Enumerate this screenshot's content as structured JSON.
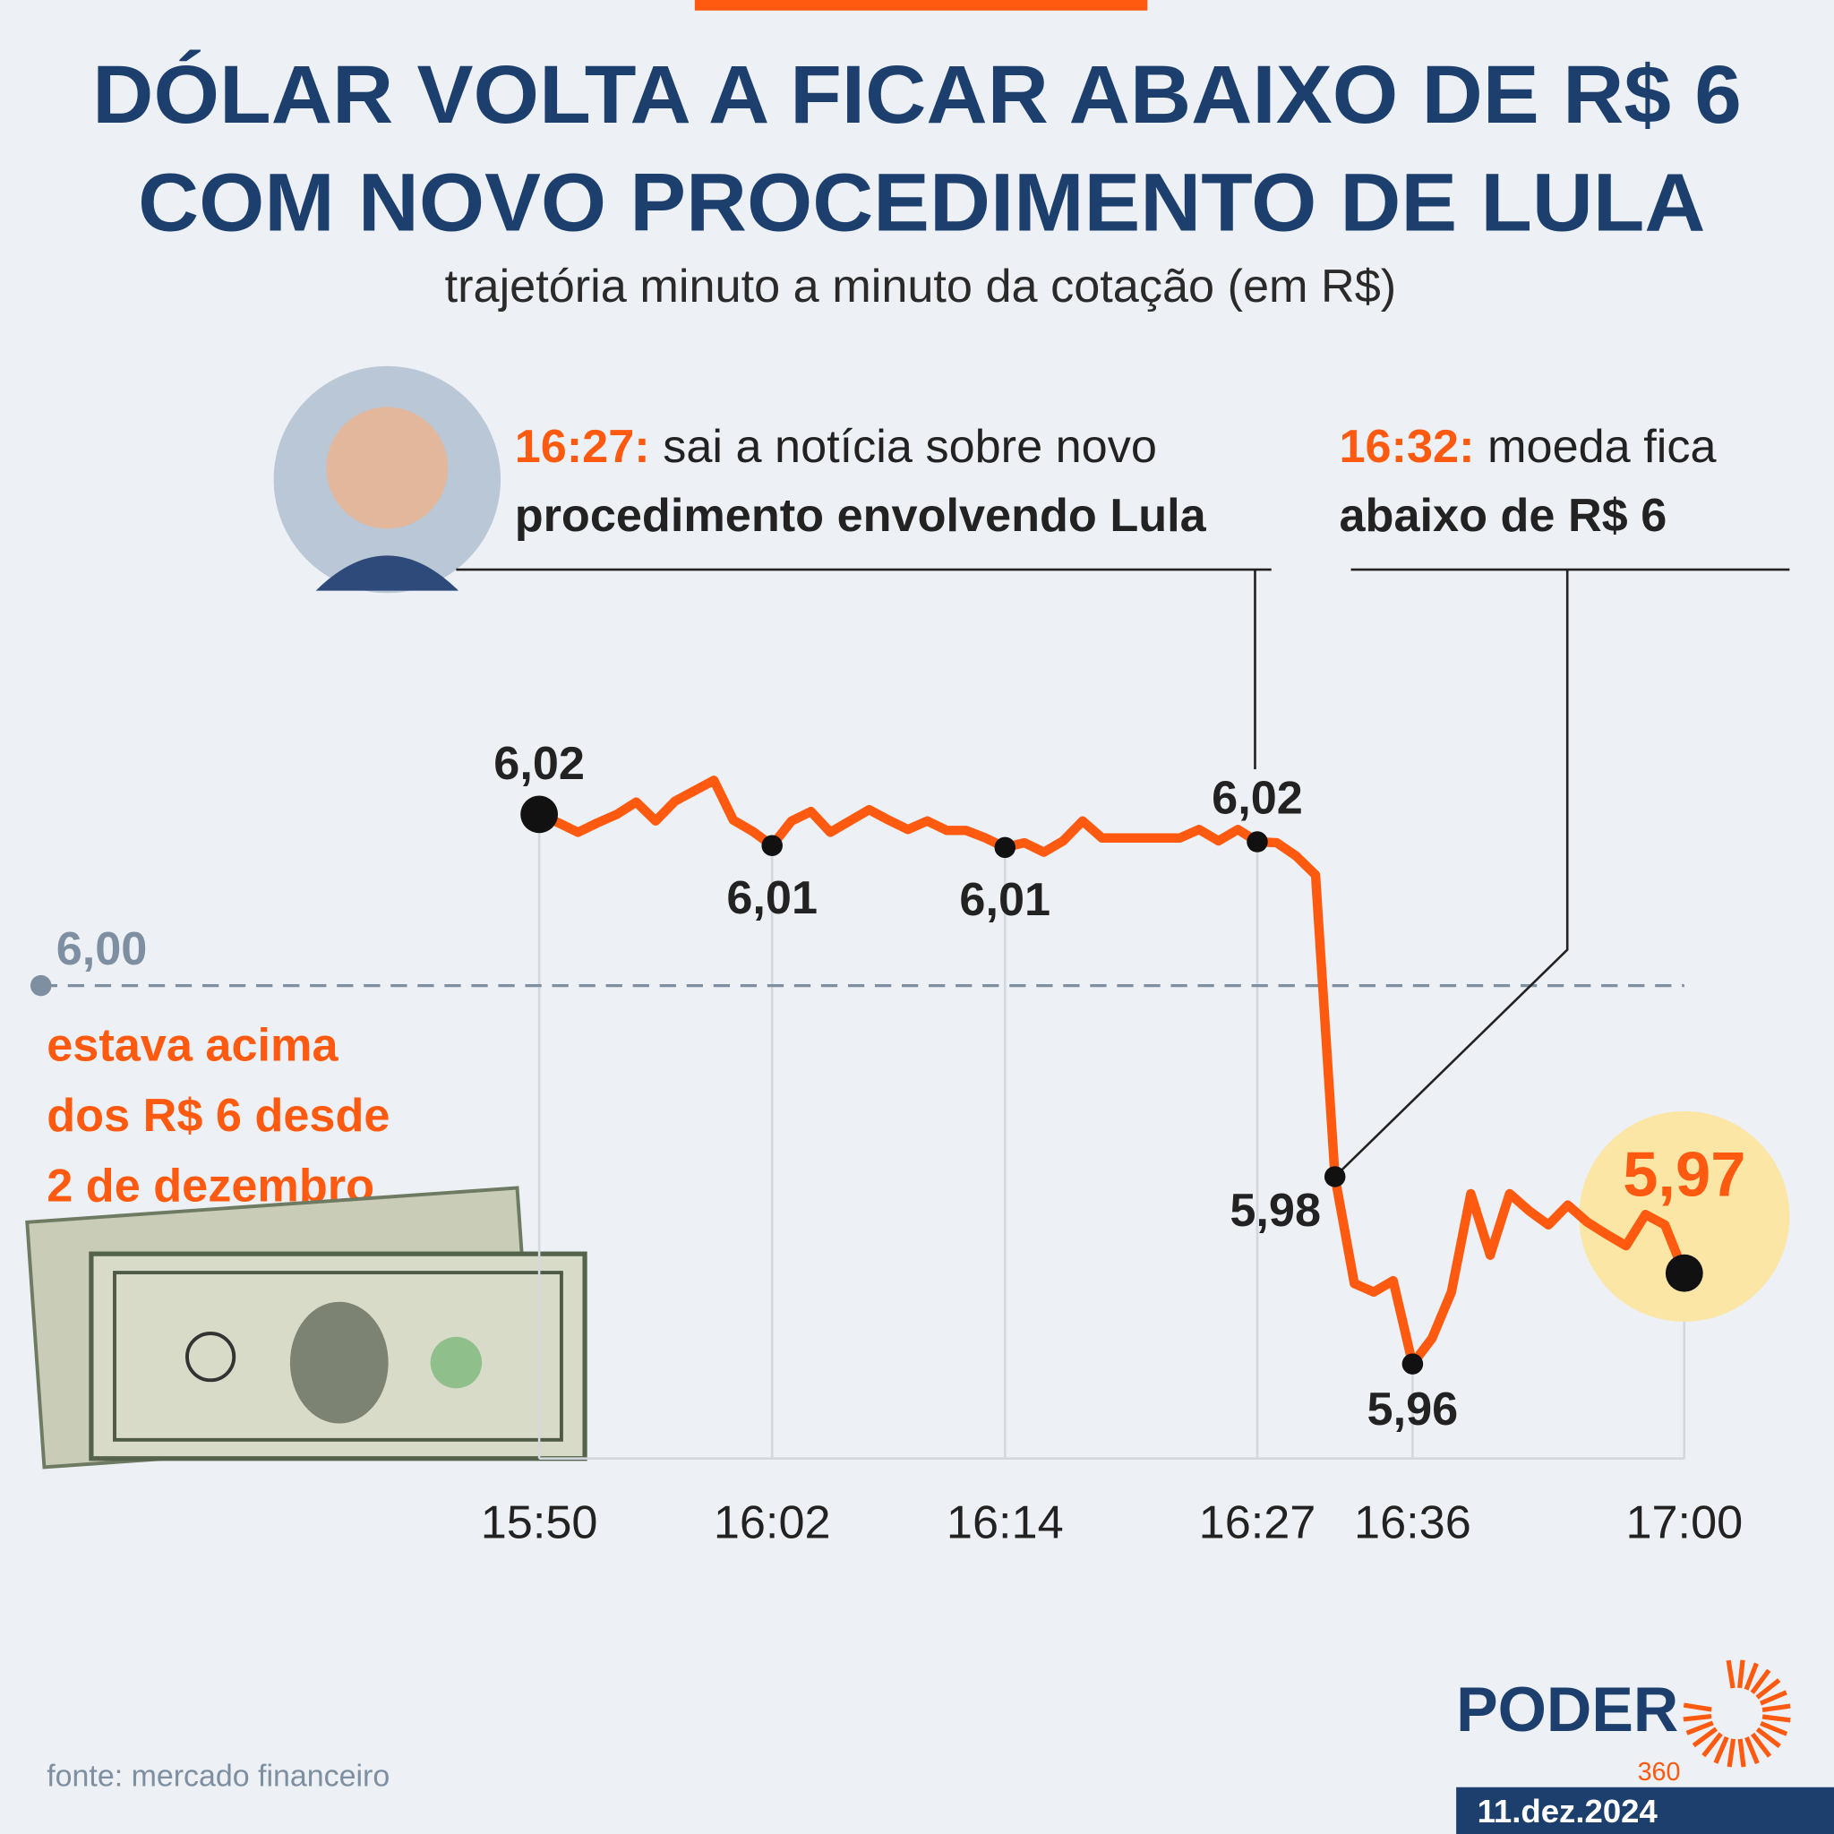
{
  "chart_data": {
    "type": "line",
    "title_lines": [
      "DÓLAR VOLTA A FICAR ABAIXO DE R$ 6",
      "COM NOVO PROCEDIMENTO DE LULA"
    ],
    "subtitle": "trajetória minuto a minuto da cotação (em R$)",
    "categories": [
      "15:50",
      null,
      null,
      null,
      null,
      null,
      null,
      null,
      null,
      null,
      null,
      null,
      "16:02",
      null,
      null,
      null,
      null,
      null,
      null,
      null,
      null,
      null,
      null,
      null,
      "16:14",
      null,
      null,
      null,
      null,
      null,
      null,
      null,
      null,
      null,
      null,
      null,
      null,
      "16:27",
      null,
      null,
      null,
      null,
      null,
      null,
      null,
      "16:36",
      null,
      null,
      null,
      null,
      null,
      null,
      null,
      null,
      null,
      null,
      null,
      null,
      null,
      "17:00"
    ],
    "values": [
      6.0181,
      6.0172,
      6.0162,
      6.0172,
      6.0181,
      6.0194,
      6.0174,
      6.0195,
      6.0206,
      6.0217,
      6.0175,
      6.0163,
      6.0148,
      6.0174,
      6.0184,
      6.0162,
      6.0174,
      6.0186,
      6.0175,
      6.0165,
      6.0174,
      6.0164,
      6.0164,
      6.0156,
      6.0146,
      6.0151,
      6.0141,
      6.0153,
      6.0174,
      6.0156,
      6.0156,
      6.0156,
      6.0156,
      6.0156,
      6.0165,
      6.0153,
      6.0165,
      6.0152,
      6.0151,
      6.0137,
      6.0117,
      5.9798,
      5.9685,
      5.9676,
      5.9688,
      5.96,
      5.9627,
      5.9676,
      5.978,
      5.9715,
      5.978,
      5.9762,
      5.9747,
      5.9768,
      5.975,
      5.9737,
      5.9725,
      5.9758,
      5.9747,
      5.9696
    ],
    "value_labels": [
      "6,02",
      null,
      null,
      null,
      null,
      null,
      null,
      null,
      null,
      null,
      null,
      null,
      "6,01",
      null,
      null,
      null,
      null,
      null,
      null,
      null,
      null,
      null,
      null,
      null,
      "6,01",
      null,
      null,
      null,
      null,
      null,
      null,
      null,
      null,
      null,
      null,
      null,
      null,
      "6,02",
      null,
      null,
      null,
      "5,98",
      null,
      null,
      null,
      "5,96",
      null,
      null,
      null,
      null,
      null,
      null,
      null,
      null,
      null,
      null,
      null,
      null,
      null,
      "5,97"
    ],
    "color": "#ff5a10",
    "ylim": [
      5.95,
      6.03
    ],
    "reference": {
      "value": 6,
      "label": "6,00"
    },
    "annotations": [
      {
        "time": "16:27:",
        "text": "sai a notícia sobre novo",
        "bold": "procedimento envolvendo Lula"
      },
      {
        "time": "16:32:",
        "text": "moeda fica",
        "bold": "abaixo de R$ 6"
      }
    ],
    "note_lines": [
      "estava acima",
      "dos R$ 6 desde",
      "2 de dezembro"
    ]
  },
  "source": "fonte: mercado financeiro",
  "date": "11.dez.2024",
  "logo": {
    "name": "PODER",
    "number": "360"
  }
}
